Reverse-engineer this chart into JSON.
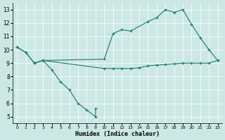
{
  "xlabel": "Humidex (Indice chaleur)",
  "xlim": [
    -0.5,
    23.5
  ],
  "ylim": [
    4.5,
    13.5
  ],
  "xticks": [
    0,
    1,
    2,
    3,
    4,
    5,
    6,
    7,
    8,
    9,
    10,
    11,
    12,
    13,
    14,
    15,
    16,
    17,
    18,
    19,
    20,
    21,
    22,
    23
  ],
  "yticks": [
    5,
    6,
    7,
    8,
    9,
    10,
    11,
    12,
    13
  ],
  "bg_color": "#cce8e5",
  "line_color": "#1a7a6e",
  "line1_x": [
    0,
    1,
    2,
    3,
    4,
    5,
    6,
    7,
    8,
    9,
    9
  ],
  "line1_y": [
    10.2,
    9.8,
    9.0,
    9.2,
    8.5,
    7.6,
    7.0,
    6.0,
    5.5,
    5.0,
    5.6
  ],
  "line2_x": [
    0,
    1,
    2,
    3,
    10,
    11,
    12,
    13,
    15,
    16,
    17,
    18,
    19,
    20,
    21,
    22,
    23
  ],
  "line2_y": [
    10.2,
    9.8,
    9.0,
    9.2,
    9.3,
    11.2,
    11.5,
    11.4,
    12.1,
    12.4,
    13.0,
    12.8,
    13.0,
    11.9,
    10.9,
    10.0,
    9.2
  ],
  "line3_x": [
    2,
    3,
    10,
    11,
    12,
    13,
    14,
    15,
    16,
    17,
    18,
    19,
    20,
    21,
    22,
    23
  ],
  "line3_y": [
    9.0,
    9.2,
    8.6,
    8.6,
    8.6,
    8.6,
    8.65,
    8.8,
    8.85,
    8.9,
    8.95,
    9.0,
    9.0,
    9.0,
    9.0,
    9.2
  ]
}
